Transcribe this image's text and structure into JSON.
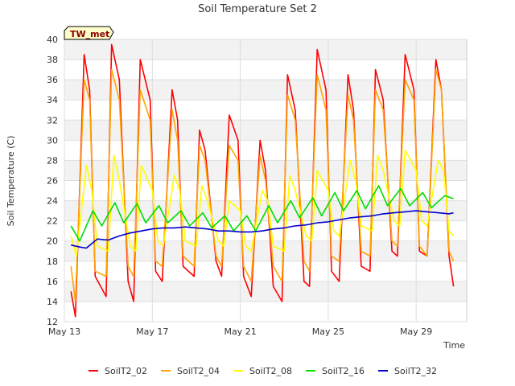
{
  "chart_data": {
    "type": "line",
    "title": "Soil Temperature Set 2",
    "site_label": "TW_met",
    "xlabel": "Time",
    "ylabel": "Soil Temperature (C)",
    "xlim": [
      0,
      18.3
    ],
    "ylim": [
      12,
      40
    ],
    "grid": true,
    "legend_position": "bottom",
    "x_ticks": [
      {
        "x": 0,
        "label": "May 13"
      },
      {
        "x": 4,
        "label": "May 17"
      },
      {
        "x": 8,
        "label": "May 21"
      },
      {
        "x": 12,
        "label": "May 25"
      },
      {
        "x": 16,
        "label": "May 29"
      }
    ],
    "y_ticks": [
      12,
      14,
      16,
      18,
      20,
      22,
      24,
      26,
      28,
      30,
      32,
      34,
      36,
      38,
      40
    ],
    "series": [
      {
        "name": "SoilT2_02",
        "color": "#ff0000",
        "x": [
          0.3,
          0.5,
          0.9,
          1.15,
          1.4,
          1.9,
          2.15,
          2.5,
          2.9,
          3.15,
          3.45,
          3.9,
          4.15,
          4.45,
          4.9,
          5.15,
          5.4,
          5.9,
          6.15,
          6.4,
          6.9,
          7.15,
          7.5,
          7.9,
          8.15,
          8.5,
          8.9,
          9.15,
          9.5,
          9.9,
          10.15,
          10.5,
          10.9,
          11.15,
          11.5,
          11.9,
          12.15,
          12.5,
          12.9,
          13.15,
          13.5,
          13.9,
          14.15,
          14.5,
          14.9,
          15.15,
          15.5,
          15.9,
          16.15,
          16.5,
          16.9,
          17.15,
          17.5,
          17.7
        ],
        "y": [
          15,
          12.5,
          38.5,
          35,
          16.5,
          14.5,
          39.5,
          36,
          16,
          14,
          38,
          34,
          17,
          16,
          35,
          32,
          17.5,
          16.5,
          31,
          29,
          18,
          16.5,
          32.5,
          30,
          16.5,
          14.5,
          30,
          27,
          15.5,
          14,
          36.5,
          33,
          16,
          15.5,
          39,
          35,
          17,
          16,
          36.5,
          33,
          17.5,
          17,
          37,
          34,
          19,
          18.5,
          38.5,
          35,
          19,
          18.5,
          38,
          35,
          18.5,
          15.5
        ]
      },
      {
        "name": "SoilT2_04",
        "color": "#ffa500",
        "x": [
          0.3,
          0.5,
          0.9,
          1.15,
          1.4,
          1.9,
          2.15,
          2.5,
          2.9,
          3.15,
          3.45,
          3.9,
          4.15,
          4.45,
          4.9,
          5.15,
          5.4,
          5.9,
          6.15,
          6.4,
          6.9,
          7.15,
          7.5,
          7.9,
          8.15,
          8.5,
          8.9,
          9.15,
          9.5,
          9.9,
          10.15,
          10.5,
          10.9,
          11.15,
          11.5,
          11.9,
          12.15,
          12.5,
          12.9,
          13.15,
          13.5,
          13.9,
          14.15,
          14.5,
          14.9,
          15.15,
          15.5,
          15.9,
          16.15,
          16.5,
          16.9,
          17.15,
          17.5,
          17.7
        ],
        "y": [
          17.5,
          14,
          36,
          34,
          17,
          16.5,
          37,
          34,
          17.5,
          16.5,
          35,
          32,
          18,
          17.5,
          33,
          30,
          18.5,
          17.5,
          29.5,
          28,
          18.5,
          17.5,
          29.5,
          28,
          17.5,
          16,
          28.5,
          26,
          17.5,
          16,
          34.5,
          32,
          18,
          17,
          36.5,
          33,
          18.5,
          18,
          34.5,
          32,
          19,
          18.5,
          35,
          33,
          20,
          19.5,
          36,
          34,
          19.5,
          18.5,
          37,
          35,
          19,
          18
        ]
      },
      {
        "name": "SoilT2_08",
        "color": "#ffff00",
        "x": [
          0.3,
          0.55,
          1.0,
          1.25,
          1.5,
          2.0,
          2.25,
          2.5,
          3.0,
          3.25,
          3.5,
          4.0,
          4.25,
          4.5,
          5.0,
          5.25,
          5.5,
          6.0,
          6.25,
          6.5,
          7.0,
          7.25,
          7.5,
          8.0,
          8.25,
          8.5,
          9.0,
          9.25,
          9.5,
          10.0,
          10.25,
          10.5,
          11.0,
          11.25,
          11.5,
          12.0,
          12.25,
          12.5,
          13.0,
          13.25,
          13.5,
          14.0,
          14.25,
          14.5,
          15.0,
          15.25,
          15.5,
          16.0,
          16.25,
          16.5,
          17.0,
          17.25,
          17.5,
          17.7
        ],
        "y": [
          20.5,
          18.5,
          27.5,
          25,
          19.5,
          19,
          28.5,
          26,
          19.5,
          19,
          27.5,
          25,
          20,
          19.5,
          26.5,
          25,
          20,
          19.5,
          25.5,
          24,
          20,
          19.5,
          24,
          23,
          19.5,
          19,
          25,
          24,
          19.5,
          19,
          26.5,
          25,
          20.5,
          20,
          27,
          25,
          21,
          20.5,
          28,
          26,
          21.5,
          21,
          28.5,
          27,
          22,
          21.5,
          29,
          27,
          22,
          21.5,
          28,
          27,
          21,
          20.5
        ]
      },
      {
        "name": "SoilT2_16",
        "color": "#00dd00",
        "x": [
          0.3,
          0.7,
          1.3,
          1.7,
          2.3,
          2.7,
          3.3,
          3.7,
          4.3,
          4.7,
          5.3,
          5.7,
          6.3,
          6.7,
          7.3,
          7.7,
          8.3,
          8.7,
          9.3,
          9.7,
          10.3,
          10.7,
          11.3,
          11.7,
          12.3,
          12.7,
          13.3,
          13.7,
          14.3,
          14.7,
          15.3,
          15.7,
          16.3,
          16.7,
          17.3,
          17.7
        ],
        "y": [
          21.5,
          20,
          23,
          21.5,
          23.8,
          21.8,
          23.7,
          21.8,
          23.5,
          21.8,
          23,
          21.5,
          22.8,
          21.3,
          22.5,
          21,
          22.5,
          21,
          23.5,
          21.8,
          24,
          22.3,
          24.3,
          22.5,
          24.8,
          23,
          25,
          23.2,
          25.5,
          23.5,
          25.2,
          23.5,
          24.8,
          23.3,
          24.5,
          24.2
        ]
      },
      {
        "name": "SoilT2_32",
        "color": "#0000cc",
        "x": [
          0.3,
          0.7,
          1.0,
          1.5,
          2.0,
          2.5,
          3.0,
          3.5,
          4.0,
          4.5,
          5.0,
          5.5,
          6.0,
          6.5,
          7.0,
          7.5,
          8.0,
          8.5,
          9.0,
          9.5,
          10.0,
          10.5,
          11.0,
          11.5,
          12.0,
          12.5,
          13.0,
          13.5,
          14.0,
          14.5,
          15.0,
          15.5,
          16.0,
          16.5,
          17.0,
          17.5,
          17.7
        ],
        "y": [
          19.6,
          19.4,
          19.3,
          20.2,
          20.1,
          20.5,
          20.8,
          21.0,
          21.2,
          21.3,
          21.3,
          21.4,
          21.3,
          21.2,
          21.0,
          21.0,
          20.9,
          20.9,
          21.0,
          21.2,
          21.3,
          21.5,
          21.6,
          21.8,
          21.9,
          22.1,
          22.3,
          22.4,
          22.5,
          22.7,
          22.8,
          22.9,
          23.0,
          22.9,
          22.8,
          22.7,
          22.8
        ]
      }
    ]
  }
}
